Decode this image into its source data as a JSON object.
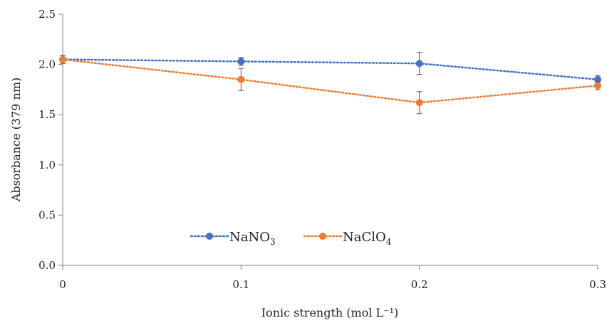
{
  "chart_data": {
    "type": "line",
    "title": "",
    "xlabel": "Ionic strength (mol L⁻¹)",
    "ylabel": "Absorbance (379 nm)",
    "x": [
      0,
      0.1,
      0.2,
      0.3
    ],
    "x_tick_labels": [
      "0",
      "0.1",
      "0.2",
      "0.3"
    ],
    "xlim": [
      0,
      0.3
    ],
    "ylim": [
      0,
      2.5
    ],
    "y_ticks": [
      0,
      0.5,
      1.0,
      1.5,
      2.0,
      2.5
    ],
    "y_tick_labels": [
      "0.0",
      "0.5",
      "1.0",
      "1.5",
      "2.0",
      "2.5"
    ],
    "grid": false,
    "legend_position": "bottom-center",
    "series": [
      {
        "name": "NaNO3",
        "label_main": "NaNO",
        "label_sub": "3",
        "color": "#4472C4",
        "values": [
          2.05,
          2.03,
          2.01,
          1.85
        ],
        "errors": [
          0.04,
          0.04,
          0.11,
          0.04
        ]
      },
      {
        "name": "NaClO4",
        "label_main": "NaClO",
        "label_sub": "4",
        "color": "#ED7D31",
        "values": [
          2.05,
          1.85,
          1.62,
          1.79
        ],
        "errors": [
          0.04,
          0.11,
          0.11,
          0.04
        ]
      }
    ]
  }
}
